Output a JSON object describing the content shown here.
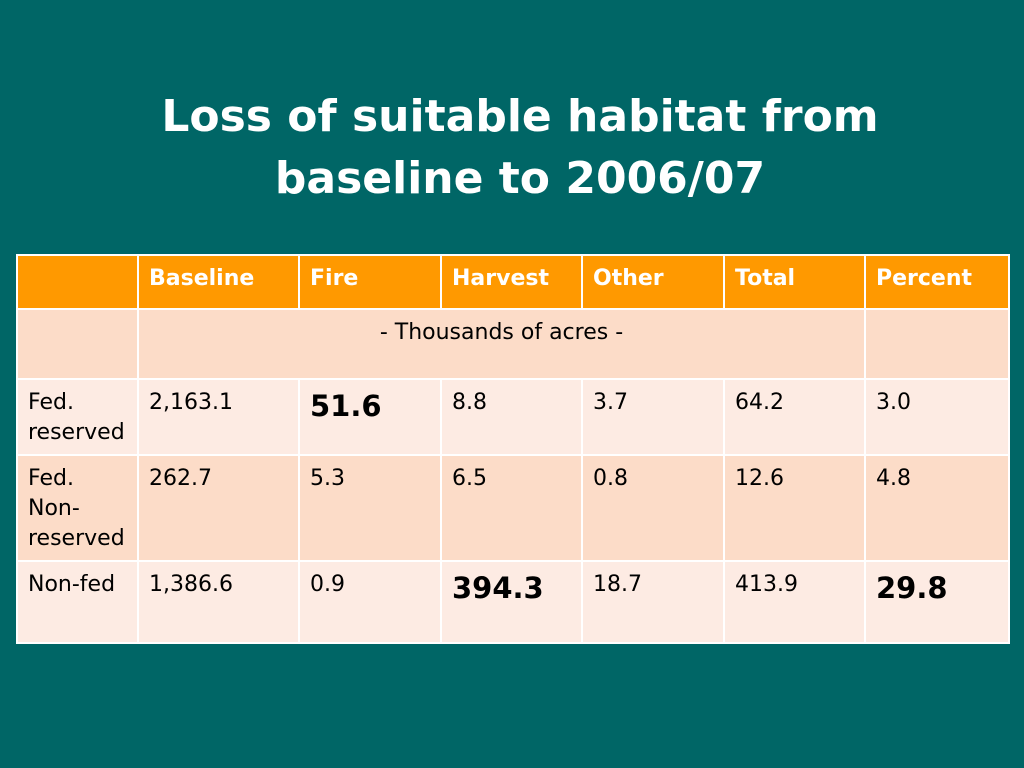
{
  "title": {
    "line1": "Loss of suitable habitat from",
    "line2": "baseline to 2006/07"
  },
  "table": {
    "headers": [
      "",
      "Baseline",
      "Fire",
      "Harvest",
      "Other",
      "Total",
      "Percent"
    ],
    "units": "- Thousands of acres -",
    "rows": [
      {
        "label": "Fed. reserved",
        "values": [
          "2,163.1",
          "51.6",
          "8.8",
          "3.7",
          "64.2",
          "3.0"
        ]
      },
      {
        "label": "Fed. Non-reserved",
        "values": [
          "262.7",
          "5.3",
          "6.5",
          "0.8",
          "12.6",
          "4.8"
        ]
      },
      {
        "label": "Non-fed",
        "values": [
          "1,386.6",
          "0.9",
          "394.3",
          "18.7",
          "413.9",
          "29.8"
        ]
      }
    ]
  },
  "colors": {
    "background": "#006666",
    "header": "#ff9900",
    "row_light": "#fdebe3",
    "row_dark": "#fcdcc8",
    "title_text": "#ffffff"
  }
}
